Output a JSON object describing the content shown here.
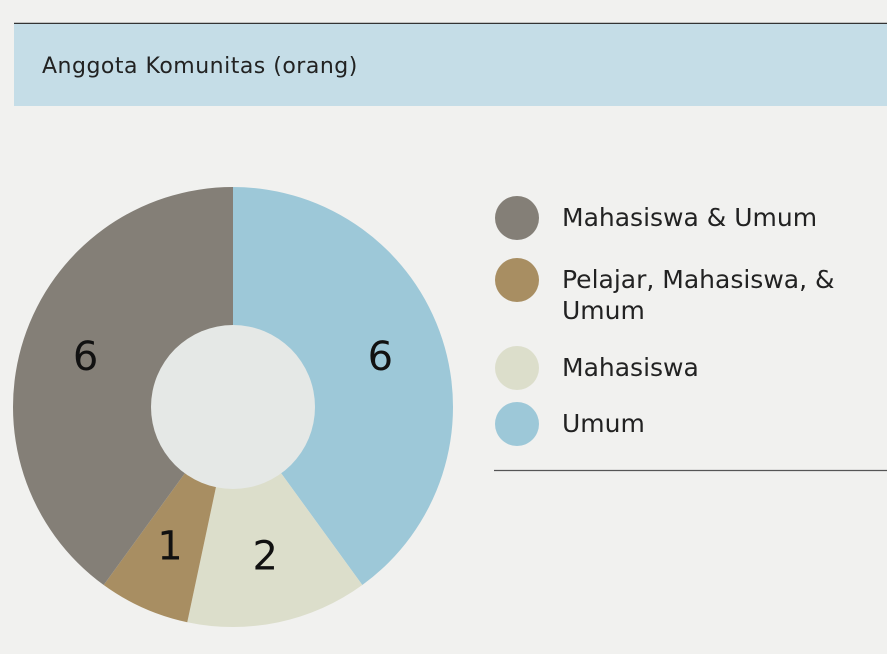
{
  "chart_data": {
    "type": "donut",
    "title": "Anggota Komunitas (orang)",
    "categories": [
      "Mahasiswa & Umum",
      "Pelajar, Mahasiswa, & Umum",
      "Mahasiswa",
      "Umum"
    ],
    "values": [
      6,
      1,
      2,
      6
    ],
    "colors": [
      "#847f77",
      "#a88e62",
      "#dcdecb",
      "#9dc8d8"
    ]
  }
}
